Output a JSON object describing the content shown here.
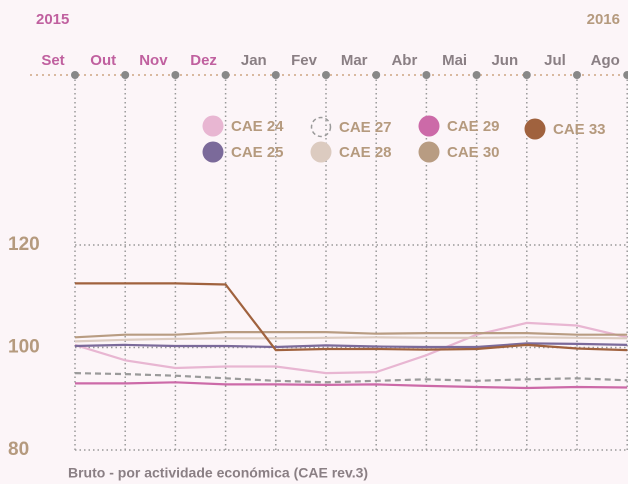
{
  "chart_data": {
    "type": "line",
    "caption": "Bruto - por actividade económica (CAE rev.3)",
    "year_start": "2015",
    "year_end": "2016",
    "categories": [
      "Set",
      "Out",
      "Nov",
      "Dez",
      "Jan",
      "Fev",
      "Mar",
      "Abr",
      "Mai",
      "Jun",
      "Jul",
      "Ago"
    ],
    "category_colors": [
      "#c0609f",
      "#c0609f",
      "#c0609f",
      "#c0609f",
      "#8a7f84",
      "#8a7f84",
      "#8a7f84",
      "#8a7f84",
      "#8a7f84",
      "#8a7f84",
      "#8a7f84",
      "#8a7f84"
    ],
    "ylim": [
      80,
      120
    ],
    "yticks": [
      80,
      100,
      120
    ],
    "grid": true,
    "series": [
      {
        "name": "CAE 24",
        "color": "#e8b6d2",
        "values": [
          100.5,
          97.5,
          96,
          96.3,
          96.3,
          95,
          95.2,
          98.5,
          102.5,
          104.8,
          104.3,
          102
        ]
      },
      {
        "name": "CAE 25",
        "color": "#7b6a9a",
        "values": [
          100.3,
          100.5,
          100.3,
          100.3,
          100.1,
          100.4,
          100.2,
          100.1,
          100.1,
          100.8,
          100.7,
          100.5
        ]
      },
      {
        "name": "CAE 27",
        "color": "#9a9a9a",
        "dashed": true,
        "values": [
          95,
          94.8,
          94.5,
          94,
          93.5,
          93.2,
          93.5,
          93.8,
          93.5,
          93.8,
          94,
          93.6
        ]
      },
      {
        "name": "CAE 28",
        "color": "#dccbc0",
        "values": [
          101.2,
          101.5,
          101.7,
          101.8,
          101.8,
          101.9,
          102,
          101.9,
          101.9,
          102,
          101.9,
          101.8
        ]
      },
      {
        "name": "CAE 29",
        "color": "#cc6aa8",
        "values": [
          93,
          93,
          93.2,
          92.8,
          92.8,
          92.7,
          92.8,
          92.5,
          92.3,
          92.1,
          92.3,
          92.2
        ]
      },
      {
        "name": "CAE 30",
        "color": "#b89c82",
        "values": [
          102,
          102.5,
          102.5,
          103,
          103,
          103,
          102.7,
          102.8,
          102.8,
          102.8,
          102.5,
          102.5
        ]
      },
      {
        "name": "CAE 33",
        "color": "#a0623e",
        "values": [
          112.5,
          112.5,
          112.5,
          112.3,
          99.5,
          99.7,
          99.7,
          99.6,
          99.7,
          100.5,
          99.8,
          99.5
        ]
      }
    ]
  }
}
